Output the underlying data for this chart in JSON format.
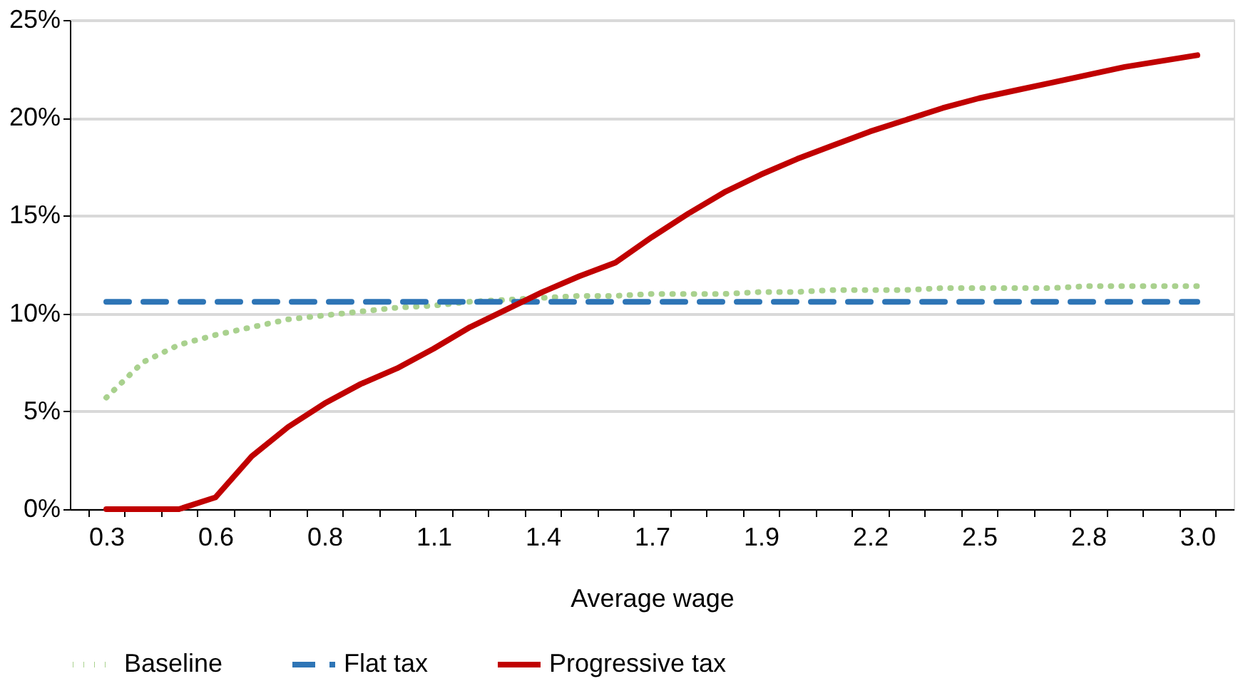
{
  "chart_data": {
    "type": "line",
    "xlabel": "Average wage",
    "categories": [
      "0.3",
      null,
      null,
      "0.6",
      null,
      null,
      "0.8",
      null,
      null,
      "1.1",
      null,
      null,
      "1.4",
      null,
      null,
      "1.7",
      null,
      null,
      "1.9",
      null,
      null,
      "2.2",
      null,
      null,
      "2.5",
      null,
      null,
      "2.8",
      null,
      null,
      "3.0"
    ],
    "series": [
      {
        "name": "Baseline",
        "color": "#a9d18e",
        "line_style": "dotted",
        "values": [
          5.7,
          7.5,
          8.4,
          8.9,
          9.3,
          9.7,
          9.9,
          10.1,
          10.3,
          10.4,
          10.6,
          10.7,
          10.8,
          10.9,
          10.9,
          11.0,
          11.0,
          11.0,
          11.1,
          11.1,
          11.2,
          11.2,
          11.2,
          11.3,
          11.3,
          11.3,
          11.3,
          11.4,
          11.4,
          11.4,
          11.4
        ]
      },
      {
        "name": "Flat tax",
        "color": "#2e75b6",
        "line_style": "dashed",
        "values": [
          10.6,
          10.6,
          10.6,
          10.6,
          10.6,
          10.6,
          10.6,
          10.6,
          10.6,
          10.6,
          10.6,
          10.6,
          10.6,
          10.6,
          10.6,
          10.6,
          10.6,
          10.6,
          10.6,
          10.6,
          10.6,
          10.6,
          10.6,
          10.6,
          10.6,
          10.6,
          10.6,
          10.6,
          10.6,
          10.6,
          10.6
        ]
      },
      {
        "name": "Progressive tax",
        "color": "#c00000",
        "line_style": "solid",
        "values": [
          0,
          0,
          0,
          0.6,
          2.7,
          4.2,
          5.4,
          6.4,
          7.2,
          8.2,
          9.3,
          10.2,
          11.1,
          11.9,
          12.6,
          13.9,
          15.1,
          16.2,
          17.1,
          17.9,
          18.6,
          19.3,
          19.9,
          20.5,
          21.0,
          21.4,
          21.8,
          22.2,
          22.6,
          22.9,
          23.2
        ]
      }
    ],
    "ylim": [
      0,
      25
    ],
    "yticks": [
      {
        "value": 0,
        "label": "0%"
      },
      {
        "value": 5,
        "label": "5%"
      },
      {
        "value": 10,
        "label": "10%"
      },
      {
        "value": 15,
        "label": "15%"
      },
      {
        "value": 20,
        "label": "20%"
      },
      {
        "value": 25,
        "label": "25%"
      }
    ],
    "grid": "y",
    "legend": "bottom",
    "marker": "none"
  }
}
